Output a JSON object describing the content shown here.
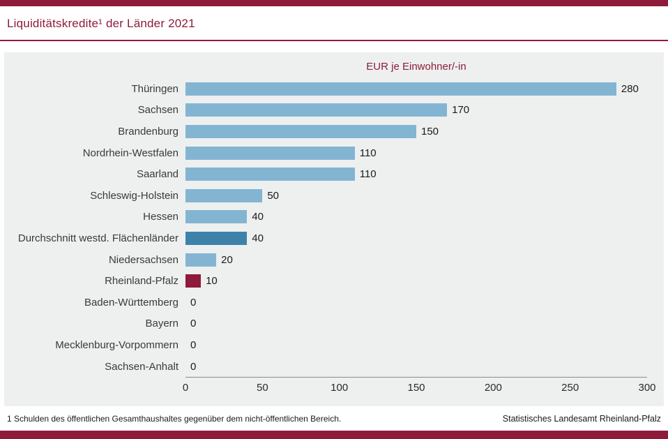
{
  "header": {
    "title": "Liquiditätskredite¹ der Länder 2021"
  },
  "chart_data": {
    "type": "bar",
    "orientation": "horizontal",
    "title": "EUR je Einwohner/-in",
    "xlabel": "",
    "ylabel": "",
    "categories": [
      "Thüringen",
      "Sachsen",
      "Brandenburg",
      "Nordrhein-Westfalen",
      "Saarland",
      "Schleswig-Holstein",
      "Hessen",
      "Durchschnitt westd. Flächenländer",
      "Niedersachsen",
      "Rheinland-Pfalz",
      "Baden-Württemberg",
      "Bayern",
      "Mecklenburg-Vorpommern",
      "Sachsen-Anhalt"
    ],
    "values": [
      280,
      170,
      150,
      110,
      110,
      50,
      40,
      40,
      20,
      10,
      0,
      0,
      0,
      0
    ],
    "bar_color_keys": [
      "default",
      "default",
      "default",
      "default",
      "default",
      "default",
      "default",
      "average",
      "default",
      "highlight",
      "default",
      "default",
      "default",
      "default"
    ],
    "colors": {
      "default": "#83b5d3",
      "average": "#3e82aa",
      "highlight": "#8e1b3a"
    },
    "xlim": [
      0,
      300
    ],
    "ticks": [
      0,
      50,
      100,
      150,
      200,
      250,
      300
    ],
    "grid": false,
    "legend": "none"
  },
  "footer": {
    "footnote": "1 Schulden des öffentlichen Gesamthaushaltes gegenüber dem nicht-öffentlichen Bereich.",
    "source": "Statistisches Landesamt Rheinland-Pfalz"
  },
  "colors": {
    "accent": "#8e1b3a",
    "panel_bg": "#edf0ef"
  }
}
